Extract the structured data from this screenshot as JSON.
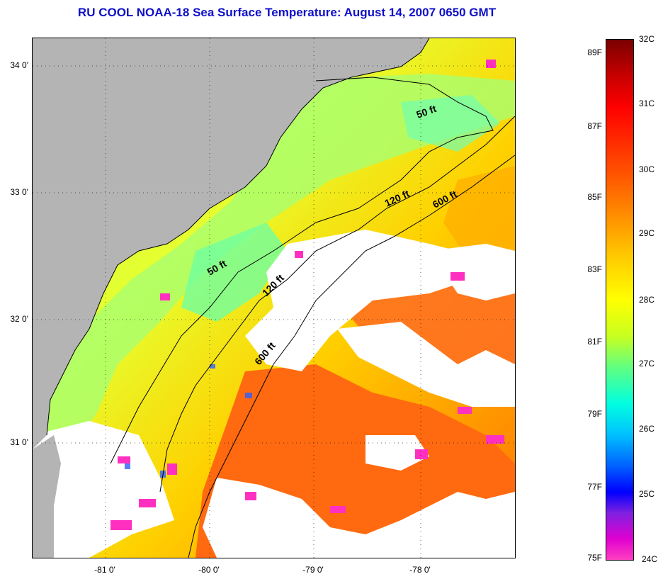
{
  "title": "RU COOL  NOAA-18  Sea Surface Temperature:  August 14, 2007 0650 GMT",
  "axes": {
    "lat_labels": [
      "34 0'",
      "33 0'",
      "32 0'",
      "31 0'"
    ],
    "lon_labels": [
      "-81 0'",
      "-80 0'",
      "-79 0'",
      "-78 0'"
    ]
  },
  "isobaths": [
    "50 ft",
    "120 ft",
    "600 ft",
    "50 ft",
    "120 ft",
    "600 ft"
  ],
  "colorbar": {
    "fahrenheit": [
      "89F",
      "87F",
      "85F",
      "83F",
      "81F",
      "79F",
      "77F",
      "75F"
    ],
    "celsius": [
      "32C",
      "31C",
      "30C",
      "29C",
      "28C",
      "27C",
      "26C",
      "25C",
      "24C"
    ]
  },
  "colors": {
    "land": "#b4b4b4",
    "cloud": "#ffffff",
    "title": "#1010c8"
  }
}
